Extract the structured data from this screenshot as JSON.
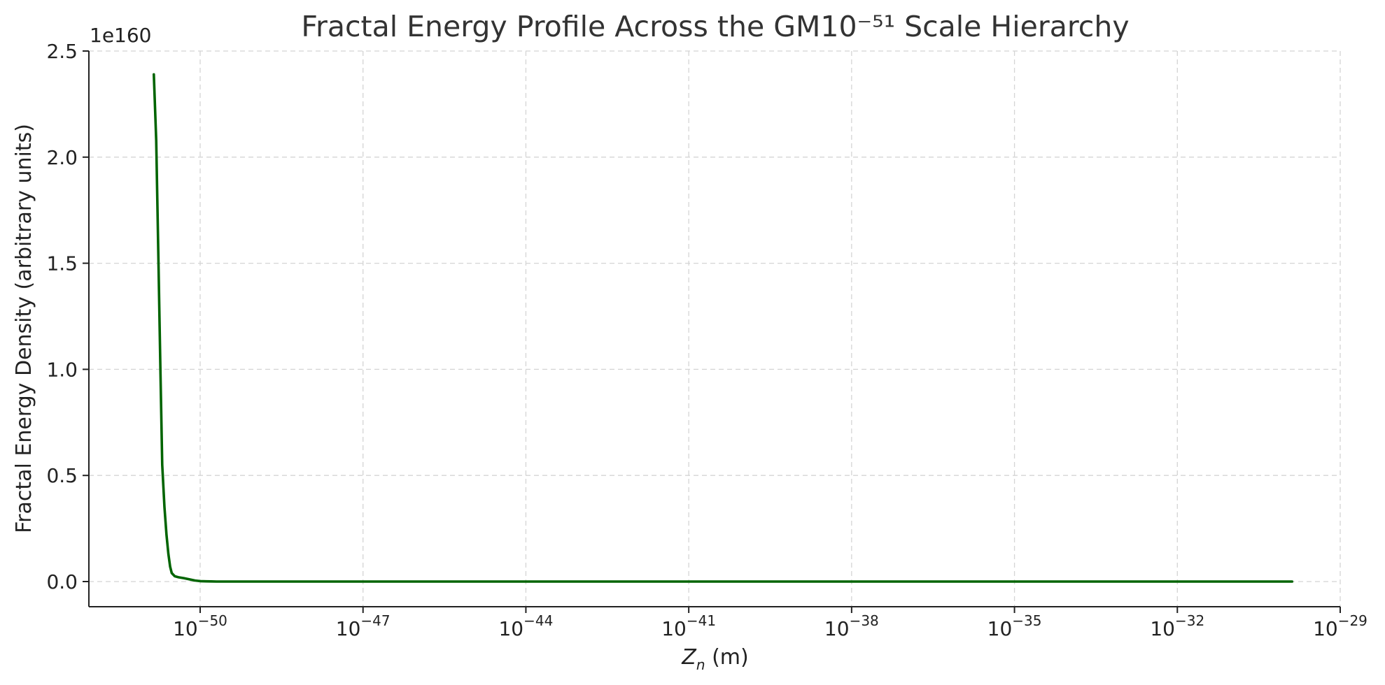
{
  "chart_data": {
    "type": "line",
    "title": "Fractal Energy Profile Across the GM10⁻⁵¹ Scale Hierarchy",
    "xlabel_main": "Z",
    "xlabel_sub": "n",
    "xlabel_unit": " (m)",
    "ylabel": "Fractal Energy Density (arbitrary units)",
    "y_offset_label": "1e160",
    "x_scale": "log",
    "xlim": [
      1e-52,
      1e-29
    ],
    "ylim": [
      -0.12,
      2.5
    ],
    "grid": true,
    "x_ticks": [
      {
        "value": 1e-50,
        "base": "10",
        "exp": "−50"
      },
      {
        "value": 1e-47,
        "base": "10",
        "exp": "−47"
      },
      {
        "value": 1e-44,
        "base": "10",
        "exp": "−44"
      },
      {
        "value": 1e-41,
        "base": "10",
        "exp": "−41"
      },
      {
        "value": 1e-38,
        "base": "10",
        "exp": "−38"
      },
      {
        "value": 1e-35,
        "base": "10",
        "exp": "−35"
      },
      {
        "value": 1e-32,
        "base": "10",
        "exp": "−32"
      },
      {
        "value": 1e-29,
        "base": "10",
        "exp": "−29"
      }
    ],
    "y_ticks": [
      {
        "value": 0.0,
        "label": "0.0"
      },
      {
        "value": 0.5,
        "label": "0.5"
      },
      {
        "value": 1.0,
        "label": "1.0"
      },
      {
        "value": 1.5,
        "label": "1.5"
      },
      {
        "value": 2.0,
        "label": "2.0"
      },
      {
        "value": 2.5,
        "label": "2.5"
      }
    ],
    "series": [
      {
        "color": "#006400",
        "x": [
          1.4e-51,
          1.55e-51,
          1.7e-51,
          1.85e-51,
          2e-51,
          2.2e-51,
          2.4e-51,
          2.6e-51,
          2.8e-51,
          3e-51,
          3.4e-51,
          4e-51,
          5e-51,
          6.5e-51,
          8e-51,
          1e-50,
          1.3e-50,
          1.6e-50,
          2e-50,
          1e-49,
          1e-47,
          1e-44,
          1e-41,
          1e-38,
          1e-35,
          1e-32,
          1.3e-30
        ],
        "y": [
          2.39,
          2.08,
          1.53,
          1.0,
          0.55,
          0.35,
          0.22,
          0.13,
          0.07,
          0.04,
          0.025,
          0.02,
          0.016,
          0.01,
          0.005,
          0.002,
          0.001,
          0.0005,
          0.0,
          0.0,
          0.0,
          0.0,
          0.0,
          0.0,
          0.0,
          0.0,
          0.0
        ]
      }
    ]
  }
}
